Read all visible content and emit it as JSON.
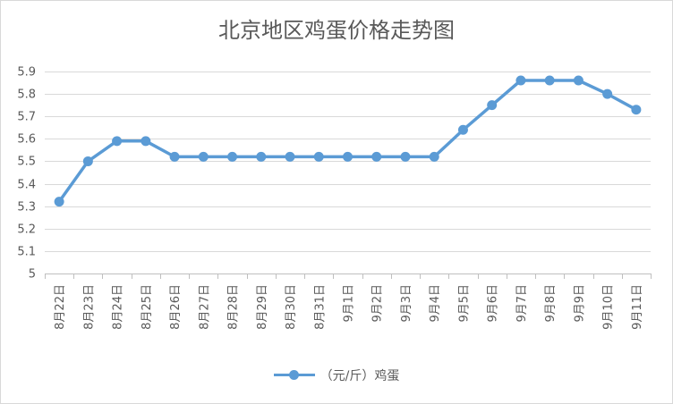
{
  "chart_data": {
    "type": "line",
    "title": "北京地区鸡蛋价格走势图",
    "xlabel": "",
    "ylabel": "",
    "ylim": [
      5,
      5.9
    ],
    "yticks": [
      "5",
      "5.1",
      "5.2",
      "5.3",
      "5.4",
      "5.5",
      "5.6",
      "5.7",
      "5.8",
      "5.9"
    ],
    "grid": true,
    "legend_position": "bottom",
    "categories": [
      "8月22日",
      "8月23日",
      "8月24日",
      "8月25日",
      "8月26日",
      "8月27日",
      "8月28日",
      "8月29日",
      "8月30日",
      "8月31日",
      "9月1日",
      "9月2日",
      "9月3日",
      "9月4日",
      "9月5日",
      "9月6日",
      "9月7日",
      "9月8日",
      "9月9日",
      "9月10日",
      "9月11日"
    ],
    "series": [
      {
        "name": "（元/斤）鸡蛋",
        "color": "#5b9bd5",
        "values": [
          5.32,
          5.5,
          5.59,
          5.59,
          5.52,
          5.52,
          5.52,
          5.52,
          5.52,
          5.52,
          5.52,
          5.52,
          5.52,
          5.52,
          5.64,
          5.75,
          5.86,
          5.86,
          5.86,
          5.8,
          5.73
        ]
      }
    ]
  }
}
